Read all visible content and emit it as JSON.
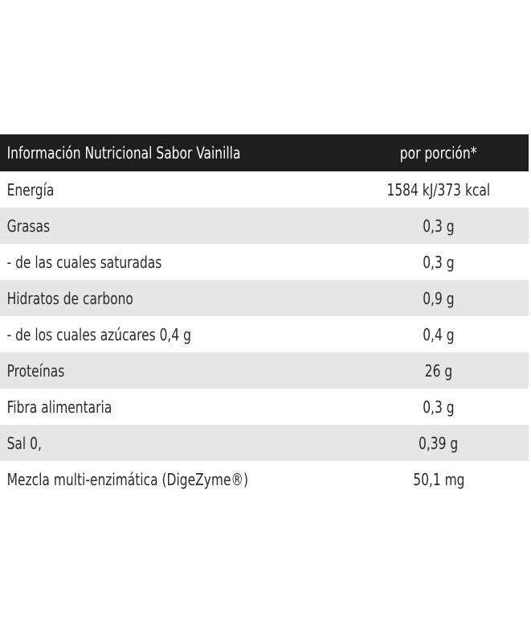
{
  "table": {
    "header": {
      "label": "Información Nutricional Sabor Vainilla",
      "value": "por porción*"
    },
    "rows": [
      {
        "label": "Energía",
        "value": "1584 kJ/373 kcal"
      },
      {
        "label": "Grasas",
        "value": "0,3 g"
      },
      {
        "label": "- de las cuales saturadas",
        "value": "0,3 g"
      },
      {
        "label": "Hidratos de carbono",
        "value": "0,9 g"
      },
      {
        "label": "- de los cuales azúcares 0,4 g",
        "value": "0,4 g"
      },
      {
        "label": "Proteínas",
        "value": "26 g"
      },
      {
        "label": "Fibra alimentaria",
        "value": "0,3 g"
      },
      {
        "label": "Sal 0,",
        "value": "0,39 g"
      },
      {
        "label": "Mezcla multi-enzimática (DigeZyme®)",
        "value": "50,1 mg"
      }
    ]
  }
}
